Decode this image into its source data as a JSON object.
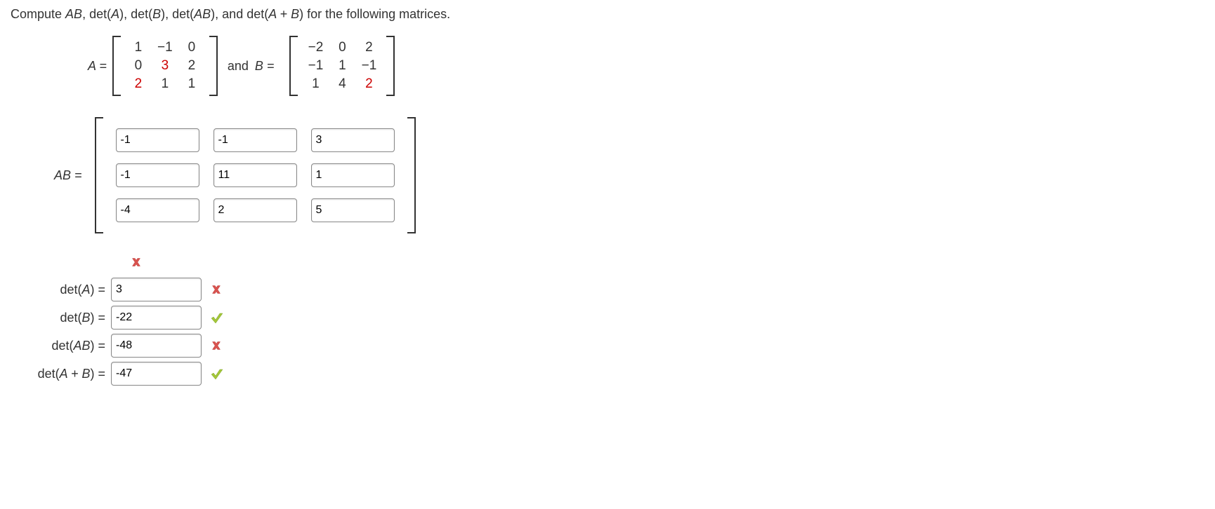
{
  "question": "Compute AB, det(A), det(B), det(AB), and det(A + B) for the following matrices.",
  "question_parts": {
    "pre": "Compute ",
    "ab": "AB",
    "mid1": ", det(",
    "a": "A",
    "mid2": "), det(",
    "b": "B",
    "mid3": "), det(",
    "ab2": "AB",
    "mid4": "), and det(",
    "apb": "A + B",
    "post": ") for the following matrices."
  },
  "matrixA": {
    "label": "A =",
    "rows": [
      [
        {
          "v": "1",
          "red": false
        },
        {
          "v": "−1",
          "red": false
        },
        {
          "v": "0",
          "red": false
        }
      ],
      [
        {
          "v": "0",
          "red": false
        },
        {
          "v": "3",
          "red": true
        },
        {
          "v": "2",
          "red": false
        }
      ],
      [
        {
          "v": "2",
          "red": true
        },
        {
          "v": "1",
          "red": false
        },
        {
          "v": "1",
          "red": false
        }
      ]
    ]
  },
  "and_label": "and",
  "matrixB": {
    "label": "B =",
    "rows": [
      [
        {
          "v": "−2",
          "red": false
        },
        {
          "v": "0",
          "red": false
        },
        {
          "v": "2",
          "red": false
        }
      ],
      [
        {
          "v": "−1",
          "red": false
        },
        {
          "v": "1",
          "red": false
        },
        {
          "v": "−1",
          "red": false
        }
      ],
      [
        {
          "v": "1",
          "red": false
        },
        {
          "v": "4",
          "red": false
        },
        {
          "v": "2",
          "red": true
        }
      ]
    ]
  },
  "ab_result": {
    "label": "AB  =",
    "values": [
      [
        "-1",
        "-1",
        "3"
      ],
      [
        "-1",
        "11",
        "1"
      ],
      [
        "-4",
        "2",
        "5"
      ]
    ]
  },
  "dets": {
    "detA": {
      "label_pre": "det(",
      "label_var": "A",
      "label_post": ")  =",
      "value": "3",
      "mark": "wrong"
    },
    "detB": {
      "label_pre": "det(",
      "label_var": "B",
      "label_post": ")  =",
      "value": "-22",
      "mark": "correct"
    },
    "detAB": {
      "label_pre": "det(",
      "label_var": "AB",
      "label_post": ")  =",
      "value": "-48",
      "mark": "wrong"
    },
    "detApB": {
      "label_pre": "det(",
      "label_var": "A + B",
      "label_post": ")  =",
      "value": "-47",
      "mark": "correct"
    }
  },
  "colors": {
    "red": "#cc0000",
    "green_check": "#8bc34a",
    "red_x": "#d9534f",
    "text": "#333333"
  }
}
